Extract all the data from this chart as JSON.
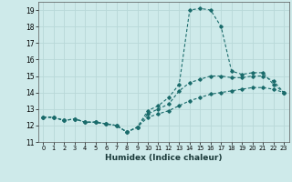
{
  "xlabel": "Humidex (Indice chaleur)",
  "ylabel": "",
  "bg_color": "#ceeaea",
  "grid_color": "#b8d8d8",
  "line_color": "#1a6b6b",
  "xlim": [
    -0.5,
    23.5
  ],
  "ylim": [
    11,
    19.5
  ],
  "yticks": [
    11,
    12,
    13,
    14,
    15,
    16,
    17,
    18,
    19
  ],
  "xticks": [
    0,
    1,
    2,
    3,
    4,
    5,
    6,
    7,
    8,
    9,
    10,
    11,
    12,
    13,
    14,
    15,
    16,
    17,
    18,
    19,
    20,
    21,
    22,
    23
  ],
  "series": [
    {
      "x": [
        0,
        1,
        2,
        3,
        4,
        5,
        6,
        7,
        8,
        9,
        10,
        11,
        12,
        13,
        14,
        15,
        16,
        17,
        18,
        19,
        20,
        21,
        22,
        23
      ],
      "y": [
        12.5,
        12.5,
        12.3,
        12.4,
        12.2,
        12.2,
        12.1,
        12.0,
        11.6,
        11.9,
        12.9,
        13.2,
        13.7,
        14.5,
        19.0,
        19.1,
        19.0,
        18.0,
        15.3,
        15.1,
        15.2,
        15.2,
        14.5,
        14.0
      ]
    },
    {
      "x": [
        0,
        1,
        2,
        3,
        4,
        5,
        6,
        7,
        8,
        9,
        10,
        11,
        12,
        13,
        14,
        15,
        16,
        17,
        18,
        19,
        20,
        21,
        22,
        23
      ],
      "y": [
        12.5,
        12.5,
        12.3,
        12.4,
        12.2,
        12.2,
        12.1,
        12.0,
        11.6,
        11.9,
        12.7,
        13.0,
        13.3,
        14.1,
        14.6,
        14.8,
        15.0,
        15.0,
        14.9,
        14.9,
        15.0,
        15.0,
        14.7,
        14.0
      ]
    },
    {
      "x": [
        0,
        1,
        2,
        3,
        4,
        5,
        6,
        7,
        8,
        9,
        10,
        11,
        12,
        13,
        14,
        15,
        16,
        17,
        18,
        19,
        20,
        21,
        22,
        23
      ],
      "y": [
        12.5,
        12.5,
        12.3,
        12.4,
        12.2,
        12.2,
        12.1,
        12.0,
        11.6,
        11.9,
        12.5,
        12.7,
        12.9,
        13.2,
        13.5,
        13.7,
        13.9,
        14.0,
        14.1,
        14.2,
        14.3,
        14.3,
        14.2,
        14.0
      ]
    }
  ]
}
